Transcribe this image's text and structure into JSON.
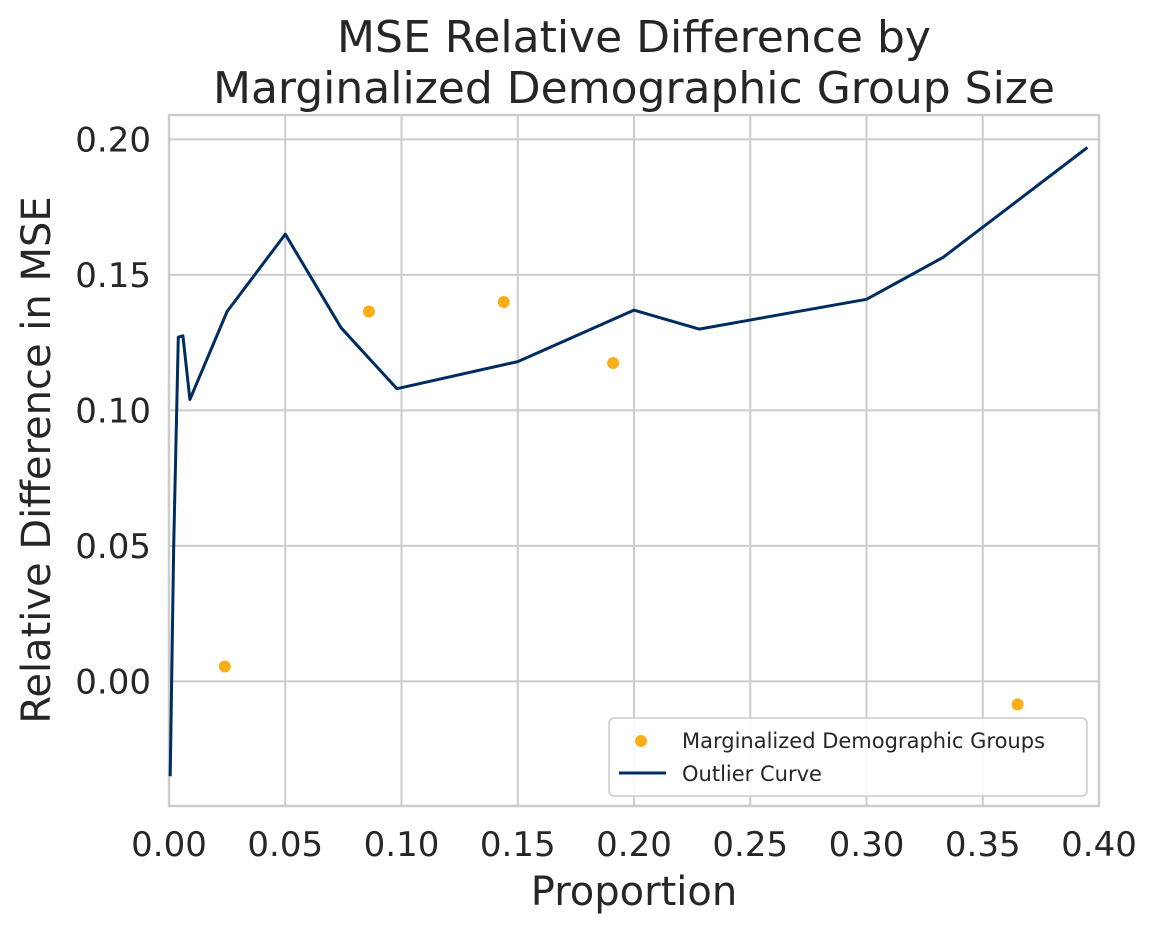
{
  "chart_data": {
    "type": "scatter+line",
    "title_lines": [
      "MSE Relative Difference by",
      "Marginalized Demographic Group Size"
    ],
    "xlabel": "Proportion",
    "ylabel": "Relative Difference in MSE",
    "xlim": [
      0.0,
      0.4
    ],
    "ylim": [
      -0.046,
      0.209
    ],
    "xticks": [
      0.0,
      0.05,
      0.1,
      0.15,
      0.2,
      0.25,
      0.3,
      0.35,
      0.4
    ],
    "xtick_labels": [
      "0.00",
      "0.05",
      "0.10",
      "0.15",
      "0.20",
      "0.25",
      "0.30",
      "0.35",
      "0.40"
    ],
    "yticks": [
      0.0,
      0.05,
      0.1,
      0.15,
      0.2
    ],
    "ytick_labels": [
      "0.00",
      "0.05",
      "0.10",
      "0.15",
      "0.20"
    ],
    "grid": true,
    "legend_position": "lower-right",
    "scatter_series": {
      "name": "Marginalized Demographic Groups",
      "color": "#f9ae17",
      "x": [
        0.024,
        0.086,
        0.144,
        0.191,
        0.365
      ],
      "y": [
        0.0055,
        0.1365,
        0.14,
        0.1175,
        -0.0085
      ]
    },
    "line_series": {
      "name": "Outlier Curve",
      "color": "#002d5f",
      "x": [
        0.0005,
        0.002,
        0.004,
        0.006,
        0.009,
        0.025,
        0.05,
        0.074,
        0.098,
        0.15,
        0.2,
        0.228,
        0.3,
        0.333,
        0.395
      ],
      "y": [
        -0.035,
        0.05,
        0.127,
        0.1275,
        0.104,
        0.1365,
        0.165,
        0.1305,
        0.108,
        0.118,
        0.137,
        0.13,
        0.141,
        0.1565,
        0.197
      ]
    }
  }
}
